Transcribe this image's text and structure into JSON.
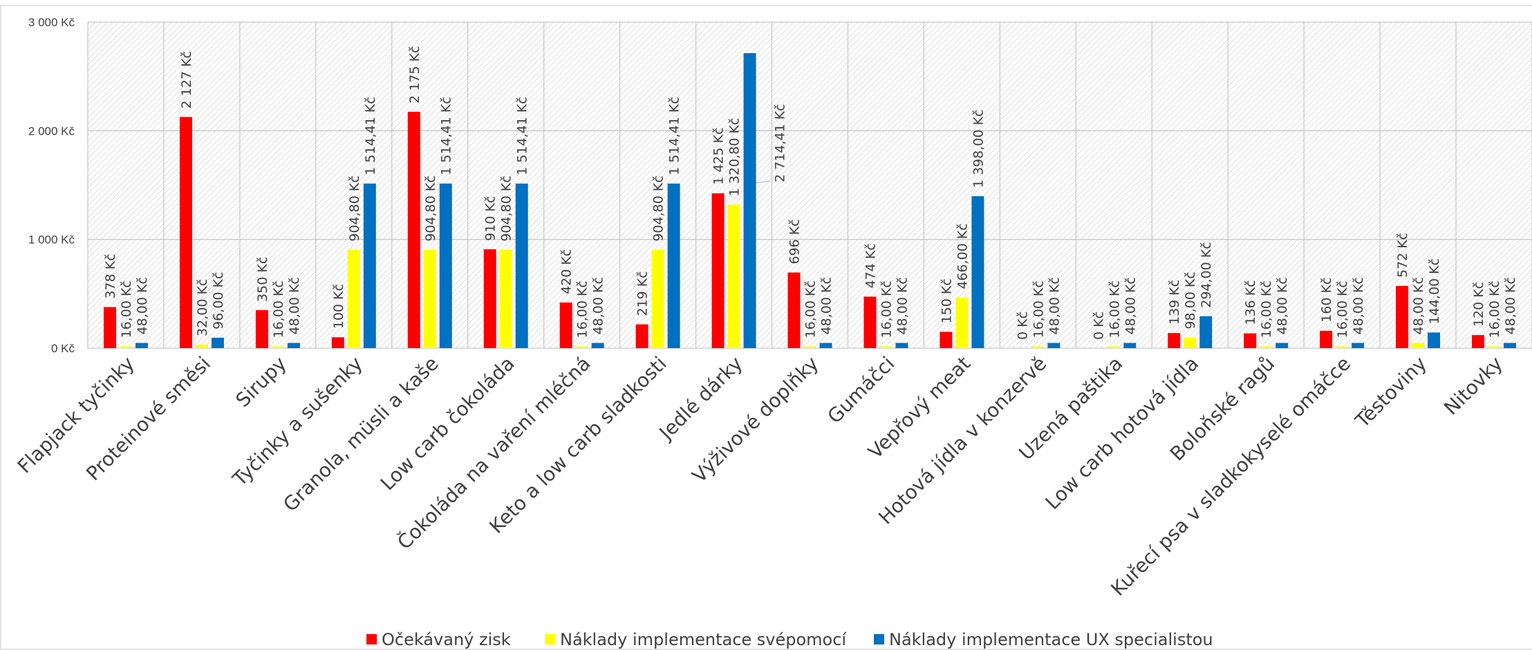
{
  "chart_data": {
    "type": "bar",
    "title": "",
    "xlabel": "",
    "ylabel": "",
    "ylim": [
      0,
      3000
    ],
    "yticks": [
      {
        "value": 0,
        "label": "0 Kč"
      },
      {
        "value": 1000,
        "label": "1 000 Kč"
      },
      {
        "value": 2000,
        "label": "2 000 Kč"
      },
      {
        "value": 3000,
        "label": "3 000 Kč"
      }
    ],
    "grid": true,
    "legend_position": "bottom",
    "categories": [
      "Flapjack tyčinky",
      "Proteinové směsi",
      "Sirupy",
      "Tyčinky a sušenky",
      "Granola, müsli a kaše",
      "Low carb čokoláda",
      "Čokoláda na vaření mléčná",
      "Keto a low carb sladkosti",
      "Jedlé dárky",
      "Výživové doplňky",
      "Gumáčci",
      "Vepřový meat",
      "Hotová jídla v konzervě",
      "Uzená paštika",
      "Low carb hotová jídla",
      "Boloňské ragů",
      "Kuřecí psa v sladkokyselé omáčce",
      "Těstoviny",
      "Nitovky"
    ],
    "series": [
      {
        "name": "Očekávaný zisk",
        "color": "#ff0000",
        "values": [
          378,
          2127,
          350,
          100,
          2175,
          910,
          420,
          219,
          1425,
          696,
          474,
          150,
          0,
          0,
          139,
          136,
          160,
          572,
          120
        ],
        "labels": [
          "378 Kč",
          "2 127 Kč",
          "350 Kč",
          "100 Kč",
          "2 175 Kč",
          "910 Kč",
          "420 Kč",
          "219 Kč",
          "1 425 Kč",
          "696 Kč",
          "474 Kč",
          "150 Kč",
          "0 Kč",
          "0 Kč",
          "139 Kč",
          "136 Kč",
          "160 Kč",
          "572 Kč",
          "120 Kč"
        ]
      },
      {
        "name": "Náklady implementace svépomocí",
        "color": "#ffff00",
        "values": [
          16,
          32,
          16,
          904.8,
          904.8,
          904.8,
          16,
          904.8,
          1320.8,
          16,
          16,
          466,
          16,
          16,
          98,
          16,
          16,
          48,
          16
        ],
        "labels": [
          "16,00 Kč",
          "32,00 Kč",
          "16,00 Kč",
          "904,80 Kč",
          "904,80 Kč",
          "904,80 Kč",
          "16,00 Kč",
          "904,80 Kč",
          "1 320,80 Kč",
          "16,00 Kč",
          "16,00 Kč",
          "466,00 Kč",
          "16,00 Kč",
          "16,00 Kč",
          "98,00 Kč",
          "16,00 Kč",
          "16,00 Kč",
          "48,00 Kč",
          "16,00 Kč"
        ]
      },
      {
        "name": "Náklady implementace UX specialistou",
        "color": "#0070c0",
        "values": [
          48,
          96,
          48,
          1514.41,
          1514.41,
          1514.41,
          48,
          1514.41,
          2714.41,
          48,
          48,
          1398,
          48,
          48,
          294,
          48,
          48,
          144,
          48
        ],
        "labels": [
          "48,00 Kč",
          "96,00 Kč",
          "48,00 Kč",
          "1 514,41 Kč",
          "1 514,41 Kč",
          "1 514,41 Kč",
          "48,00 Kč",
          "1 514,41 Kč",
          "2 714,41 Kč",
          "48,00 Kč",
          "48,00 Kč",
          "1 398,00 Kč",
          "48,00 Kč",
          "48,00 Kč",
          "294,00 Kč",
          "48,00 Kč",
          "48,00 Kč",
          "144,00 Kč",
          "48,00 Kč"
        ]
      }
    ]
  }
}
